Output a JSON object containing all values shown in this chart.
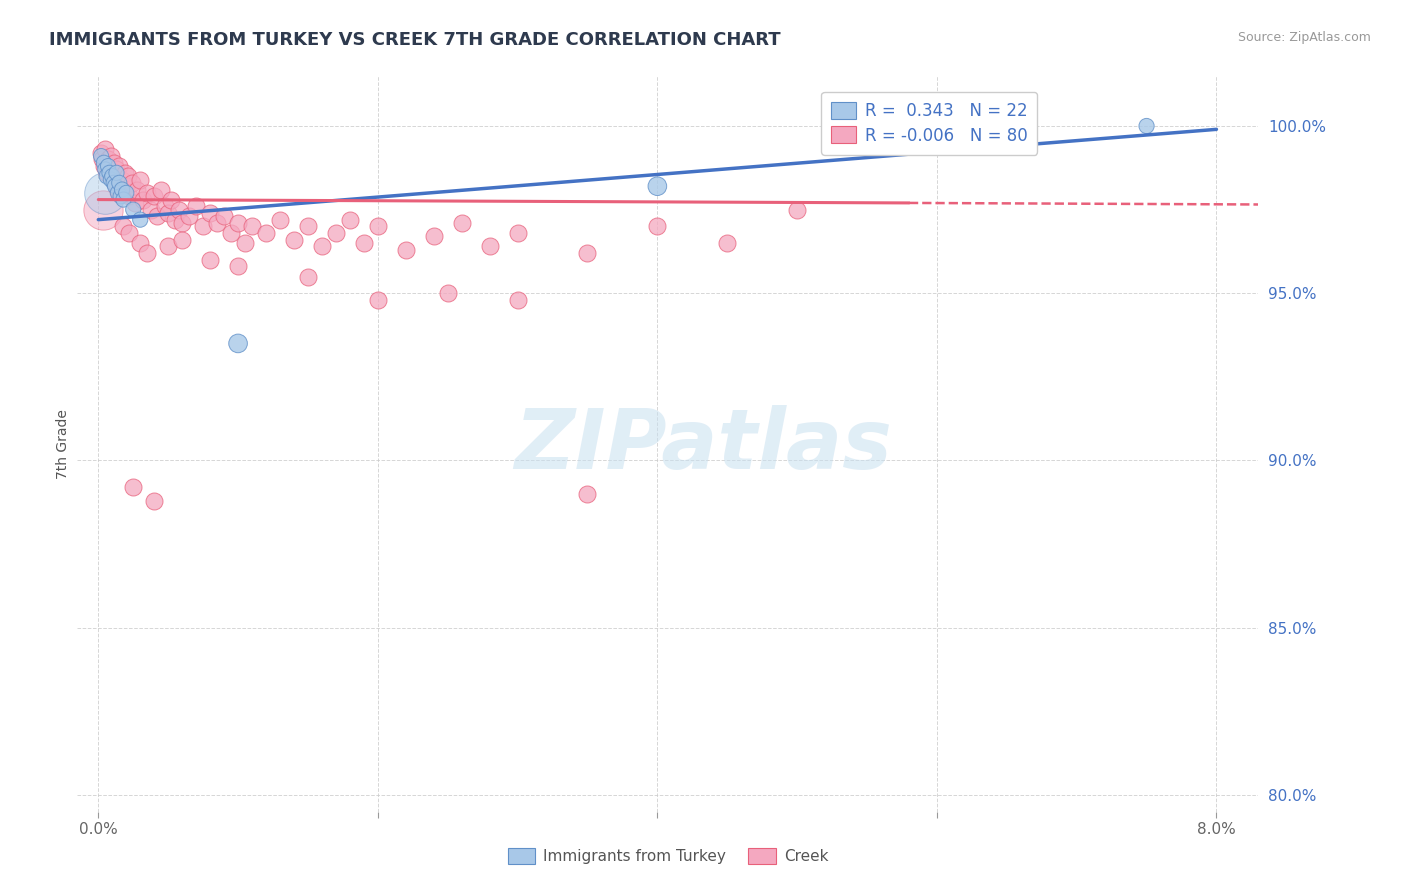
{
  "title": "IMMIGRANTS FROM TURKEY VS CREEK 7TH GRADE CORRELATION CHART",
  "source": "Source: ZipAtlas.com",
  "ylabel": "7th Grade",
  "xlim": [
    -0.15,
    8.3
  ],
  "ylim": [
    79.5,
    101.5
  ],
  "xticks": [
    0.0,
    2.0,
    4.0,
    6.0,
    8.0
  ],
  "xticklabels": [
    "0.0%",
    "",
    "",
    "",
    "8.0%"
  ],
  "yticks": [
    80.0,
    85.0,
    90.0,
    95.0,
    100.0
  ],
  "yticklabels": [
    "80.0%",
    "85.0%",
    "90.0%",
    "95.0%",
    "100.0%"
  ],
  "turkey_R": 0.343,
  "turkey_N": 22,
  "creek_R": -0.006,
  "creek_N": 80,
  "turkey_color": "#A8C8E8",
  "creek_color": "#F4A8C0",
  "turkey_edge_color": "#6090C8",
  "creek_edge_color": "#E8607A",
  "turkey_line_color": "#4472C4",
  "creek_line_color": "#E8607A",
  "turkey_points": [
    [
      0.02,
      99.1
    ],
    [
      0.04,
      98.9
    ],
    [
      0.05,
      98.7
    ],
    [
      0.06,
      98.5
    ],
    [
      0.07,
      98.8
    ],
    [
      0.08,
      98.6
    ],
    [
      0.09,
      98.4
    ],
    [
      0.1,
      98.5
    ],
    [
      0.11,
      98.3
    ],
    [
      0.12,
      98.2
    ],
    [
      0.13,
      98.6
    ],
    [
      0.14,
      98.0
    ],
    [
      0.15,
      98.3
    ],
    [
      0.16,
      97.9
    ],
    [
      0.17,
      98.1
    ],
    [
      0.18,
      97.8
    ],
    [
      0.2,
      98.0
    ],
    [
      0.25,
      97.5
    ],
    [
      0.3,
      97.2
    ],
    [
      1.0,
      93.5
    ],
    [
      4.0,
      98.2
    ],
    [
      7.5,
      100.0
    ]
  ],
  "turkey_sizes": [
    120,
    120,
    120,
    120,
    120,
    120,
    120,
    120,
    120,
    120,
    120,
    120,
    120,
    120,
    120,
    120,
    120,
    120,
    120,
    180,
    180,
    120
  ],
  "creek_points": [
    [
      0.02,
      99.2
    ],
    [
      0.03,
      99.0
    ],
    [
      0.04,
      98.8
    ],
    [
      0.05,
      99.3
    ],
    [
      0.06,
      98.6
    ],
    [
      0.07,
      99.0
    ],
    [
      0.08,
      98.7
    ],
    [
      0.09,
      99.1
    ],
    [
      0.1,
      98.5
    ],
    [
      0.11,
      98.9
    ],
    [
      0.12,
      98.3
    ],
    [
      0.13,
      98.7
    ],
    [
      0.14,
      98.1
    ],
    [
      0.15,
      98.8
    ],
    [
      0.16,
      98.2
    ],
    [
      0.17,
      98.4
    ],
    [
      0.18,
      98.0
    ],
    [
      0.19,
      98.6
    ],
    [
      0.2,
      98.2
    ],
    [
      0.21,
      98.5
    ],
    [
      0.22,
      97.9
    ],
    [
      0.24,
      98.3
    ],
    [
      0.26,
      97.7
    ],
    [
      0.28,
      98.1
    ],
    [
      0.3,
      98.4
    ],
    [
      0.32,
      97.8
    ],
    [
      0.35,
      98.0
    ],
    [
      0.38,
      97.5
    ],
    [
      0.4,
      97.9
    ],
    [
      0.42,
      97.3
    ],
    [
      0.45,
      98.1
    ],
    [
      0.48,
      97.6
    ],
    [
      0.5,
      97.4
    ],
    [
      0.52,
      97.8
    ],
    [
      0.55,
      97.2
    ],
    [
      0.58,
      97.5
    ],
    [
      0.6,
      97.1
    ],
    [
      0.65,
      97.3
    ],
    [
      0.7,
      97.6
    ],
    [
      0.75,
      97.0
    ],
    [
      0.8,
      97.4
    ],
    [
      0.85,
      97.1
    ],
    [
      0.9,
      97.3
    ],
    [
      0.95,
      96.8
    ],
    [
      1.0,
      97.1
    ],
    [
      1.05,
      96.5
    ],
    [
      1.1,
      97.0
    ],
    [
      1.2,
      96.8
    ],
    [
      1.3,
      97.2
    ],
    [
      1.4,
      96.6
    ],
    [
      1.5,
      97.0
    ],
    [
      1.6,
      96.4
    ],
    [
      1.7,
      96.8
    ],
    [
      1.8,
      97.2
    ],
    [
      1.9,
      96.5
    ],
    [
      2.0,
      97.0
    ],
    [
      2.2,
      96.3
    ],
    [
      2.4,
      96.7
    ],
    [
      2.6,
      97.1
    ],
    [
      2.8,
      96.4
    ],
    [
      3.0,
      96.8
    ],
    [
      3.5,
      96.2
    ],
    [
      4.0,
      97.0
    ],
    [
      4.5,
      96.5
    ],
    [
      0.18,
      97.0
    ],
    [
      0.22,
      96.8
    ],
    [
      0.3,
      96.5
    ],
    [
      0.35,
      96.2
    ],
    [
      0.5,
      96.4
    ],
    [
      0.6,
      96.6
    ],
    [
      0.8,
      96.0
    ],
    [
      1.0,
      95.8
    ],
    [
      1.5,
      95.5
    ],
    [
      2.0,
      94.8
    ],
    [
      2.5,
      95.0
    ],
    [
      3.0,
      94.8
    ],
    [
      0.25,
      89.2
    ],
    [
      0.4,
      88.8
    ],
    [
      3.5,
      89.0
    ],
    [
      5.0,
      97.5
    ]
  ],
  "creek_sizes": 150,
  "creek_large_point": [
    0.035,
    97.5,
    800
  ],
  "background_color": "#ffffff",
  "grid_color": "#cccccc",
  "turkey_trendline": [
    [
      0.0,
      97.2
    ],
    [
      8.0,
      99.9
    ]
  ],
  "creek_trendline_solid": [
    [
      0.0,
      97.8
    ],
    [
      5.8,
      97.7
    ]
  ],
  "creek_trendline_dashed": [
    [
      5.8,
      97.7
    ],
    [
      8.5,
      97.65
    ]
  ]
}
